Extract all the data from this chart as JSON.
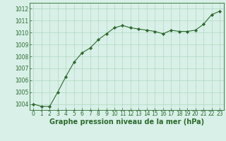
{
  "hours": [
    0,
    1,
    2,
    3,
    4,
    5,
    6,
    7,
    8,
    9,
    10,
    11,
    12,
    13,
    14,
    15,
    16,
    17,
    18,
    19,
    20,
    21,
    22,
    23
  ],
  "pressure": [
    1004.0,
    1003.8,
    1003.8,
    1005.0,
    1006.3,
    1007.5,
    1008.3,
    1008.7,
    1009.4,
    1009.9,
    1010.4,
    1010.6,
    1010.4,
    1010.3,
    1010.2,
    1010.1,
    1009.9,
    1010.2,
    1010.1,
    1010.1,
    1010.2,
    1010.7,
    1011.5,
    1011.8
  ],
  "line_color": "#2d6a2d",
  "marker": "D",
  "marker_size": 2.2,
  "bg_color": "#d8f0e8",
  "grid_color": "#b0d8c0",
  "xlabel": "Graphe pression niveau de la mer (hPa)",
  "xlabel_fontsize": 7,
  "xlabel_color": "#2d6a2d",
  "xlabel_bold": true,
  "yticks": [
    1004,
    1005,
    1006,
    1007,
    1008,
    1009,
    1010,
    1011,
    1012
  ],
  "xticks": [
    0,
    1,
    2,
    3,
    4,
    5,
    6,
    7,
    8,
    9,
    10,
    11,
    12,
    13,
    14,
    15,
    16,
    17,
    18,
    19,
    20,
    21,
    22,
    23
  ],
  "ylim": [
    1003.5,
    1012.5
  ],
  "xlim": [
    -0.5,
    23.5
  ],
  "tick_fontsize": 5.5
}
